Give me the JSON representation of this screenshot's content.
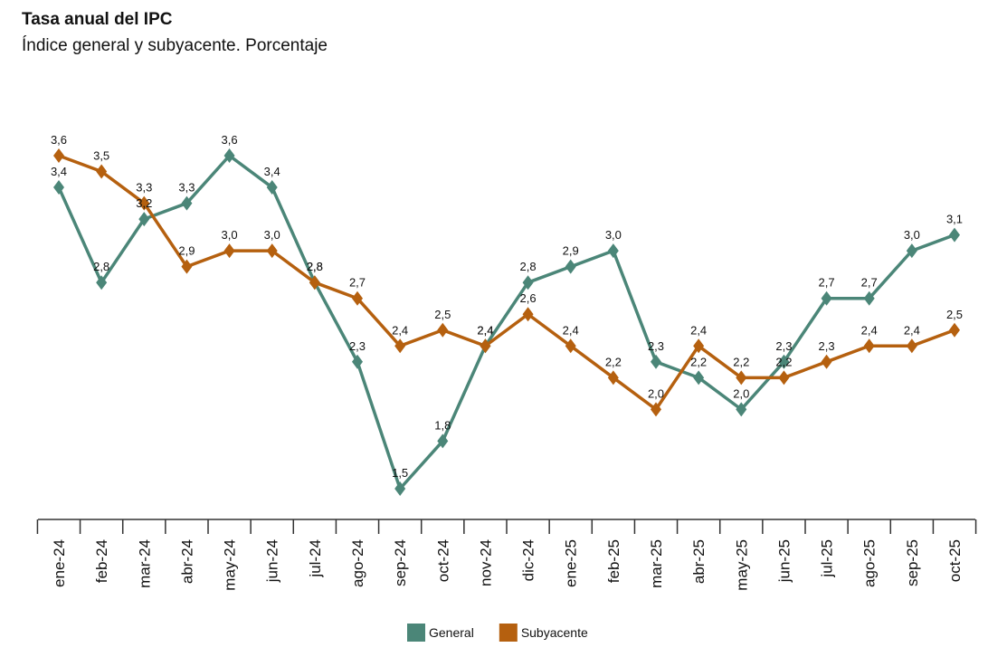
{
  "chart_data": {
    "type": "line",
    "title": "Tasa anual del IPC",
    "subtitle": "Índice general y subyacente. Porcentaje",
    "categories": [
      "ene-24",
      "feb-24",
      "mar-24",
      "abr-24",
      "may-24",
      "jun-24",
      "jul-24",
      "ago-24",
      "sep-24",
      "oct-24",
      "nov-24",
      "dic-24",
      "ene-25",
      "feb-25",
      "mar-25",
      "abr-25",
      "may-25",
      "jun-25",
      "jul-25",
      "ago-25",
      "sep-25",
      "oct-25"
    ],
    "series": [
      {
        "name": "General",
        "color": "#4b8678",
        "values": [
          3.4,
          2.8,
          3.2,
          3.3,
          3.6,
          3.4,
          2.8,
          2.3,
          1.5,
          1.8,
          2.4,
          2.8,
          2.9,
          3.0,
          2.3,
          2.2,
          2.0,
          2.3,
          2.7,
          2.7,
          3.0,
          3.1
        ],
        "value_labels": [
          "3,4",
          "2,8",
          "3,2",
          "3,3",
          "3,6",
          "3,4",
          "2,8",
          "2,3",
          "1,5",
          "1,8",
          "2,4",
          "2,8",
          "2,9",
          "3,0",
          "2,3",
          "2,2",
          "2,0",
          "2,3",
          "2,7",
          "2,7",
          "3,0",
          "3,1"
        ]
      },
      {
        "name": "Subyacente",
        "color": "#b5600f",
        "values": [
          3.6,
          3.5,
          3.3,
          2.9,
          3.0,
          3.0,
          2.8,
          2.7,
          2.4,
          2.5,
          2.4,
          2.6,
          2.4,
          2.2,
          2.0,
          2.4,
          2.2,
          2.2,
          2.3,
          2.4,
          2.4,
          2.5
        ],
        "value_labels": [
          "3,6",
          "3,5",
          "3,3",
          "2,9",
          "3,0",
          "3,0",
          "2,8",
          "2,7",
          "2,4",
          "2,5",
          "2,4",
          "2,6",
          "2,4",
          "2,2",
          "2,0",
          "2,4",
          "2,2",
          "2,2",
          "2,3",
          "2,4",
          "2,4",
          "2,5"
        ]
      }
    ],
    "legend": "bottom"
  }
}
